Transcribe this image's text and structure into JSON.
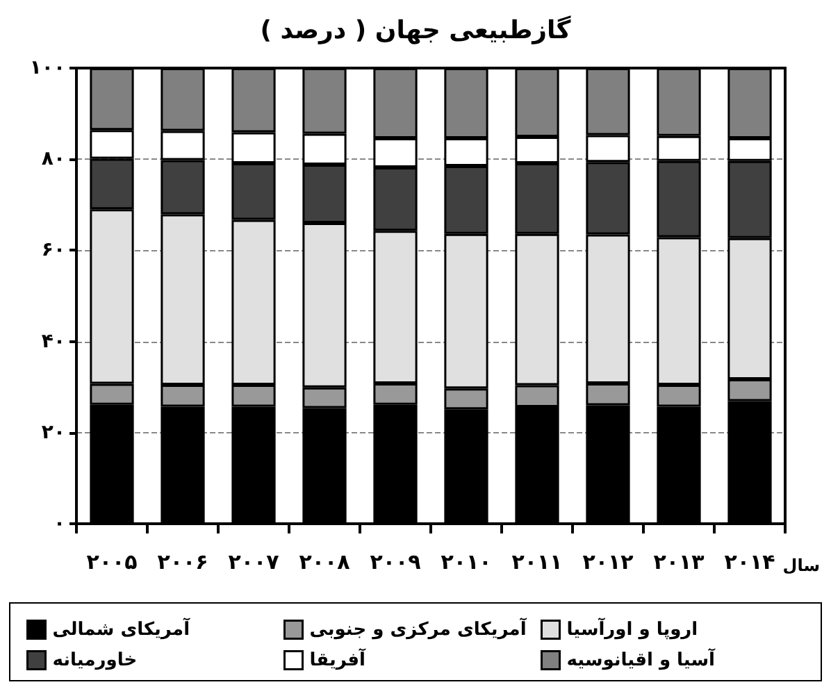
{
  "chart_data": {
    "type": "bar",
    "stacked": true,
    "title": "گازطبیعی جهان ( درصد )",
    "xlabel": "سال",
    "categories": [
      "۲۰۰۵",
      "۲۰۰۶",
      "۲۰۰۷",
      "۲۰۰۸",
      "۲۰۰۹",
      "۲۰۱۰",
      "۲۰۱۱",
      "۲۰۱۲",
      "۲۰۱۳",
      "۲۰۱۴"
    ],
    "series": [
      {
        "name": "آمریکای شمالی",
        "color": "#000000",
        "values": [
          26.1,
          25.7,
          25.7,
          25.4,
          26.1,
          25.1,
          25.6,
          26.0,
          25.7,
          26.9
        ]
      },
      {
        "name": "آمریکای مرکزی و جنوبی",
        "color": "#999999",
        "values": [
          4.6,
          4.8,
          4.8,
          4.5,
          4.7,
          4.6,
          4.8,
          4.8,
          4.8,
          4.8
        ]
      },
      {
        "name": "اروپا و اورآسیا",
        "color": "#e0e0e0",
        "values": [
          38.3,
          37.4,
          36.2,
          36.1,
          33.5,
          33.9,
          33.2,
          32.7,
          32.4,
          31.0
        ]
      },
      {
        "name": "خاورمیانه",
        "color": "#404040",
        "values": [
          11.1,
          11.9,
          12.4,
          12.8,
          13.9,
          14.9,
          15.5,
          15.9,
          16.7,
          16.9
        ]
      },
      {
        "name": "آفریقا",
        "color": "#ffffff",
        "values": [
          6.3,
          6.4,
          6.8,
          6.8,
          6.4,
          6.1,
          5.8,
          5.9,
          5.5,
          5.0
        ]
      },
      {
        "name": "آسیا و اقیانوسیه",
        "color": "#808080",
        "values": [
          13.6,
          13.8,
          14.1,
          14.4,
          15.4,
          15.4,
          15.1,
          14.7,
          14.9,
          15.4
        ]
      }
    ],
    "ylim": [
      0,
      100
    ],
    "yticks": [
      {
        "value": 0,
        "label": "۰"
      },
      {
        "value": 20,
        "label": "۲۰"
      },
      {
        "value": 40,
        "label": "۴۰"
      },
      {
        "value": 60,
        "label": "۶۰"
      },
      {
        "value": 80,
        "label": "۸۰"
      },
      {
        "value": 100,
        "label": "۱۰۰"
      }
    ],
    "grid": "y",
    "legend": "bottom"
  }
}
